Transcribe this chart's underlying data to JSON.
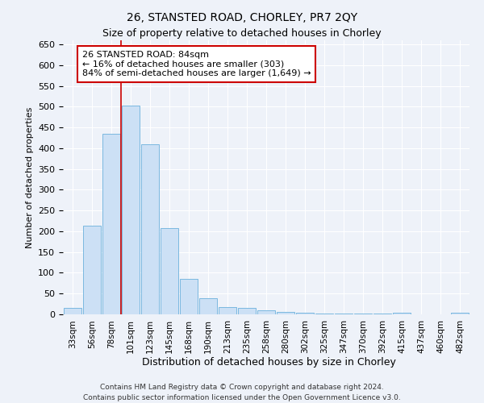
{
  "title": "26, STANSTED ROAD, CHORLEY, PR7 2QY",
  "subtitle": "Size of property relative to detached houses in Chorley",
  "xlabel": "Distribution of detached houses by size in Chorley",
  "ylabel": "Number of detached properties",
  "categories": [
    "33sqm",
    "56sqm",
    "78sqm",
    "101sqm",
    "123sqm",
    "145sqm",
    "168sqm",
    "190sqm",
    "213sqm",
    "235sqm",
    "258sqm",
    "280sqm",
    "302sqm",
    "325sqm",
    "347sqm",
    "370sqm",
    "392sqm",
    "415sqm",
    "437sqm",
    "460sqm",
    "482sqm"
  ],
  "values": [
    15,
    213,
    435,
    503,
    410,
    207,
    85,
    38,
    18,
    16,
    10,
    5,
    4,
    1,
    1,
    1,
    1,
    4,
    0,
    0,
    4
  ],
  "bar_color": "#cce0f5",
  "bar_edge_color": "#7ab8e0",
  "vline_x": 2.5,
  "vline_color": "#cc0000",
  "annotation_text": "26 STANSTED ROAD: 84sqm\n← 16% of detached houses are smaller (303)\n84% of semi-detached houses are larger (1,649) →",
  "annotation_box_color": "#ffffff",
  "annotation_box_edge": "#cc0000",
  "ylim": [
    0,
    660
  ],
  "yticks": [
    0,
    50,
    100,
    150,
    200,
    250,
    300,
    350,
    400,
    450,
    500,
    550,
    600,
    650
  ],
  "footer1": "Contains HM Land Registry data © Crown copyright and database right 2024.",
  "footer2": "Contains public sector information licensed under the Open Government Licence v3.0.",
  "background_color": "#eef2f9",
  "plot_bg_color": "#eef2f9",
  "grid_color": "#ffffff",
  "title_fontsize": 10,
  "subtitle_fontsize": 9
}
